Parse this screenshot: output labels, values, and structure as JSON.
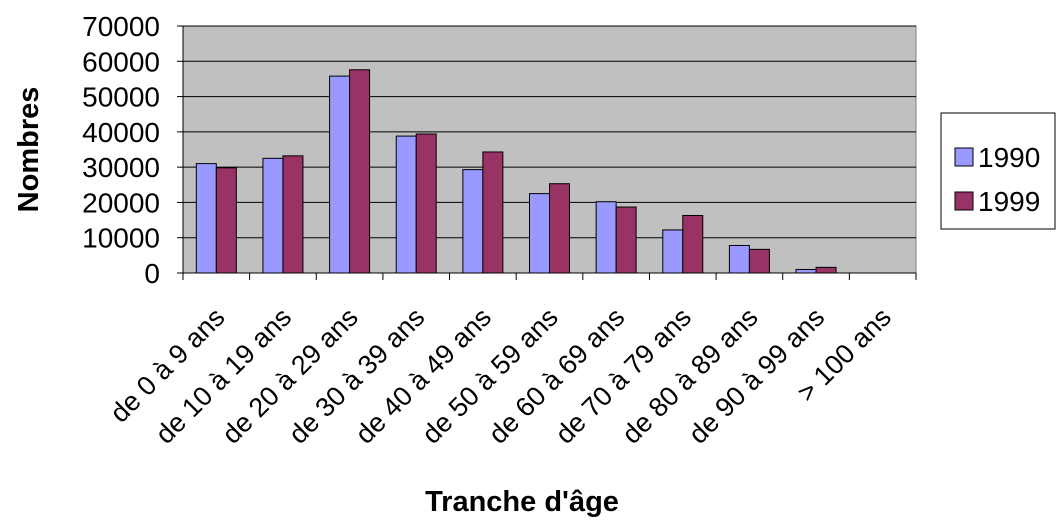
{
  "chart_data": {
    "type": "bar",
    "title": "",
    "xlabel": "Tranche d'âge",
    "ylabel": "Nombres",
    "ylim": [
      0,
      70000
    ],
    "yticks": [
      0,
      10000,
      20000,
      30000,
      40000,
      50000,
      60000,
      70000
    ],
    "grid": true,
    "legend_position": "right",
    "categories": [
      "de 0 à 9 ans",
      "de 10 à 19 ans",
      "de 20 à 29 ans",
      "de 30 à 39 ans",
      "de 40 à 49 ans",
      "de 50 à 59 ans",
      "de 60 à 69 ans",
      "de 70 à 79 ans",
      "de 80 à 89 ans",
      "de 90 à 99 ans",
      "> 100 ans"
    ],
    "series": [
      {
        "name": "1990",
        "color": "#9999ff",
        "values": [
          31000,
          32500,
          55800,
          38800,
          29300,
          22500,
          20200,
          12200,
          7800,
          1000,
          0
        ]
      },
      {
        "name": "1999",
        "color": "#993366",
        "values": [
          29800,
          33200,
          57600,
          39400,
          34300,
          25300,
          18700,
          16300,
          6700,
          1600,
          0
        ]
      }
    ],
    "plot_background": "#c0c0c0"
  }
}
